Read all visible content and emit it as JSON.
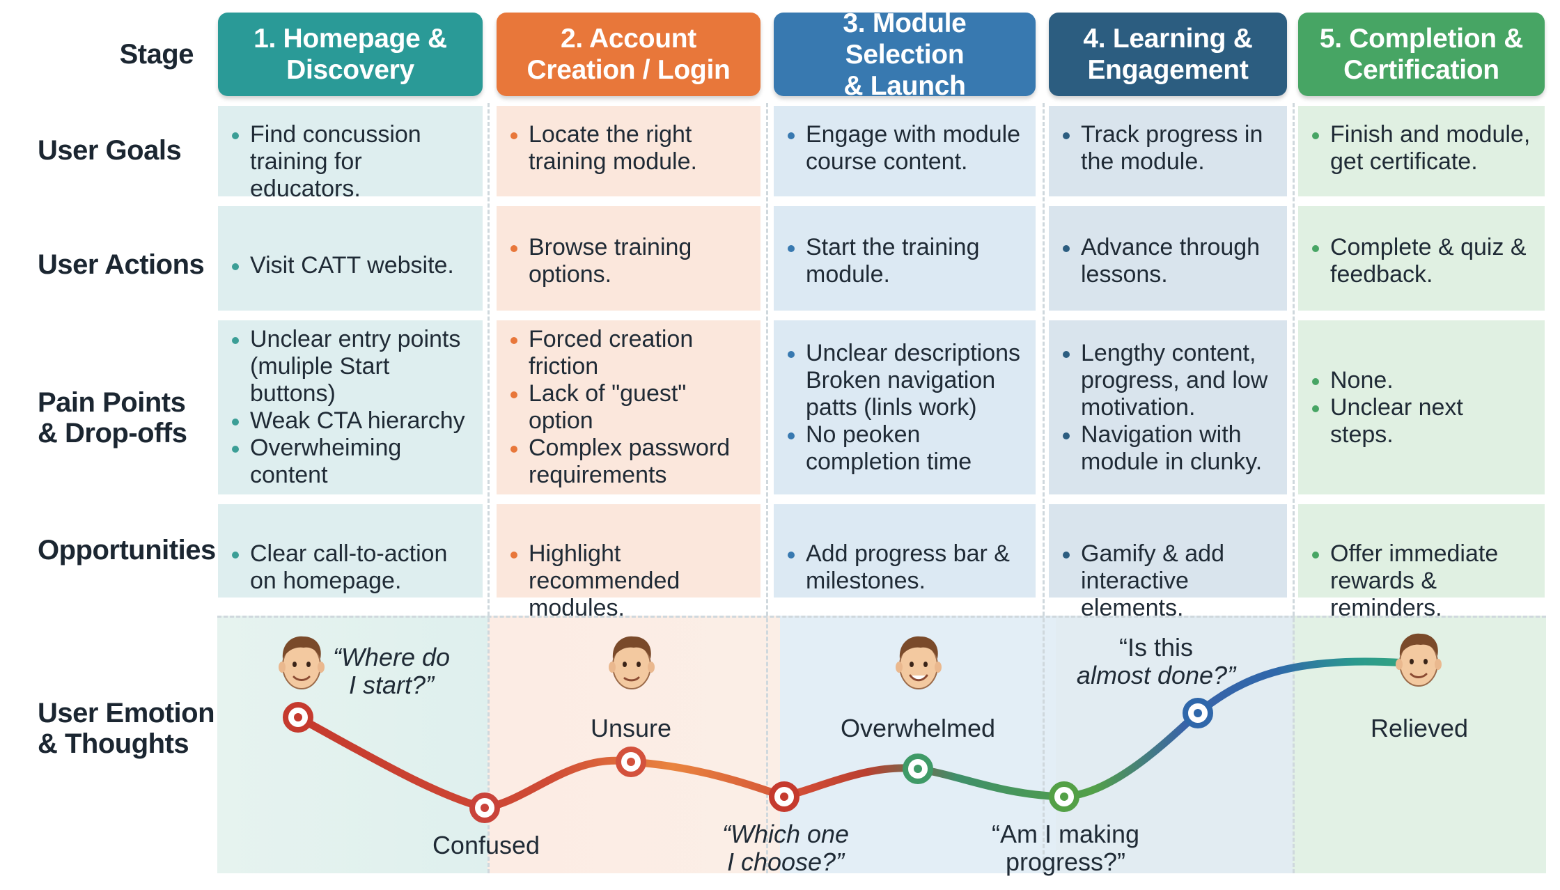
{
  "colors": {
    "stage1": "#2a9a97",
    "stage2": "#e8773a",
    "stage3": "#3879b0",
    "stage4": "#2c5d80",
    "stage5": "#47a564",
    "bg1": "#deeeef",
    "bg2": "#fbe7dc",
    "bg3": "#dce9f3",
    "bg4": "#d9e4ed",
    "bg5": "#e0f0e2"
  },
  "row_labels": {
    "stage": "Stage",
    "user_goals": "User Goals",
    "user_actions": "User Actions",
    "pain_points_line1": "Pain Points",
    "pain_points_line2": "& Drop-offs",
    "opportunities": "Opportunities",
    "emotion_line1": "User Emotion",
    "emotion_line2": "& Thoughts"
  },
  "stages": [
    {
      "title_line1": "1. Homepage &",
      "title_line2": "Discovery",
      "goals": [
        "Find concussion training for educators."
      ],
      "actions": [
        "Visit CATT website."
      ],
      "pains": [
        "Unclear entry points (muliple Start buttons)",
        "Weak CTA hierarchy",
        "Overwheiming content"
      ],
      "opportunities": [
        "Clear call-to-action on homepage."
      ]
    },
    {
      "title_line1": "2. Account",
      "title_line2": "Creation / Login",
      "goals": [
        "Locate the right training module."
      ],
      "actions": [
        "Browse training options."
      ],
      "pains": [
        "Forced creation friction",
        "Lack of \"guest\" option",
        "Complex password requirements"
      ],
      "opportunities": [
        "Highlight recommended modules."
      ]
    },
    {
      "title_line1": "3. Module Selection",
      "title_line2": "& Launch",
      "goals": [
        "Engage with module course content."
      ],
      "actions": [
        "Start the training module."
      ],
      "pains": [
        "Unclear descriptions Broken navigation patts (linls work)",
        "No peoken completion time"
      ],
      "opportunities": [
        "Add progress bar & milestones."
      ]
    },
    {
      "title_line1": "4. Learning &",
      "title_line2": "Engagement",
      "goals": [
        "Track progress in the module."
      ],
      "actions": [
        "Advance through lessons."
      ],
      "pains": [
        "Lengthy content, progress, and low motivation.",
        "Navigation with module in clunky."
      ],
      "opportunities": [
        "Gamify & add interactive elements."
      ]
    },
    {
      "title_line1": "5. Completion &",
      "title_line2": "Certification",
      "goals": [
        "Finish and module, get certificate."
      ],
      "actions": [
        "Complete & quiz & feedback."
      ],
      "pains": [
        "None.",
        "Unclear next steps."
      ],
      "opportunities": [
        "Offer immediate rewards & reminders."
      ]
    }
  ],
  "emotions": {
    "confused": "Confused",
    "unsure": "Unsure",
    "overwhelmed": "Overwhelmed",
    "relieved": "Relieved"
  },
  "thoughts": {
    "t1_line1": "“Where do",
    "t1_line2": "I start?”",
    "t2_line1": "“Which one",
    "t2_line2": "I choose?”",
    "t3_line1": "“Am I making",
    "t3_line2": "progress?”",
    "t4_line1": "“Is this",
    "t4_line2": "almost done?”"
  }
}
